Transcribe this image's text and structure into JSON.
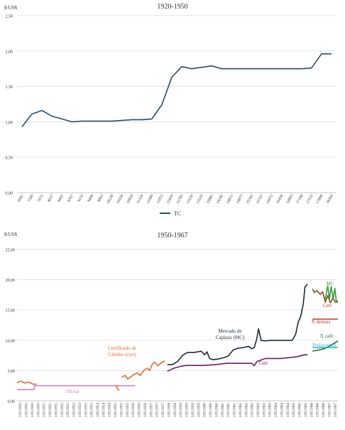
{
  "chart_data": [
    {
      "type": "line",
      "title": "1920-1950",
      "ylabel": "$/US$",
      "ylim": [
        0,
        2.5
      ],
      "ytick_labels": [
        "0,00",
        "0,50",
        "1,00",
        "1,50",
        "2,00",
        "2,50"
      ],
      "grid": true,
      "legend_position": "bottom",
      "x": [
        "6941",
        "7306",
        "7672",
        "8037",
        "8402",
        "8767",
        "9133",
        "9498",
        "9863",
        "10228",
        "10594",
        "10959",
        "11324",
        "11689",
        "12055",
        "12420",
        "12785",
        "13150",
        "13516",
        "13881",
        "14246",
        "14611",
        "14977",
        "15342",
        "15707",
        "16072",
        "16438",
        "16803",
        "17168",
        "17533",
        "17899",
        "18264"
      ],
      "series": [
        {
          "name": "TC",
          "color": "#2a4d6e",
          "points": [
            [
              6941,
              0.93
            ],
            [
              7306,
              1.11
            ],
            [
              7672,
              1.16
            ],
            [
              8037,
              1.08
            ],
            [
              8402,
              1.04
            ],
            [
              8767,
              1.0
            ],
            [
              9133,
              1.01
            ],
            [
              9498,
              1.01
            ],
            [
              9863,
              1.01
            ],
            [
              10228,
              1.01
            ],
            [
              10594,
              1.02
            ],
            [
              10959,
              1.03
            ],
            [
              11324,
              1.03
            ],
            [
              11689,
              1.04
            ],
            [
              12055,
              1.24
            ],
            [
              12420,
              1.63
            ],
            [
              12785,
              1.78
            ],
            [
              13150,
              1.75
            ],
            [
              13516,
              1.77
            ],
            [
              13881,
              1.79
            ],
            [
              14246,
              1.75
            ],
            [
              14611,
              1.75
            ],
            [
              14977,
              1.75
            ],
            [
              15342,
              1.75
            ],
            [
              15707,
              1.75
            ],
            [
              16072,
              1.75
            ],
            [
              16438,
              1.75
            ],
            [
              16803,
              1.75
            ],
            [
              17168,
              1.75
            ],
            [
              17533,
              1.76
            ],
            [
              17899,
              1.96
            ],
            [
              18264,
              1.96
            ]
          ]
        }
      ]
    },
    {
      "type": "line",
      "title": "1950-1967",
      "ylabel": "$/US$",
      "ylim": [
        0,
        25
      ],
      "ytick_labels": [
        "0,00",
        "5,00",
        "10,00",
        "15,00",
        "20,00",
        "25,00"
      ],
      "grid": true,
      "x_tick_labels": [
        "1/05/1950",
        "1/05/1950",
        "1/05/1950",
        "1/05/1950",
        "1/05/1951",
        "1/05/1951",
        "1/05/1951",
        "1/05/1952",
        "1/05/1952",
        "1/05/1952",
        "1/05/1953",
        "1/05/1953",
        "1/05/1953",
        "1/05/1954",
        "1/05/1954",
        "1/05/1954",
        "1/05/1955",
        "1/05/1955",
        "1/05/1955",
        "1/05/1956",
        "1/05/1956",
        "1/05/1956",
        "1/05/1957",
        "1/05/1957",
        "1/05/1957",
        "1/05/1958",
        "1/05/1958",
        "1/05/1958",
        "1/05/1959",
        "1/05/1959",
        "1/05/1959",
        "1/05/1960",
        "1/05/1960",
        "1/05/1960",
        "1/05/1961",
        "1/05/1961",
        "1/05/1961",
        "1/05/1962",
        "1/05/1962",
        "1/05/1962",
        "1/05/1963",
        "1/05/1963",
        "1/05/1963",
        "1/05/1964",
        "1/05/1964",
        "1/05/1964",
        "1/05/1965",
        "1/05/1965",
        "1/05/1965",
        "1/05/1966",
        "1/05/1966",
        "1/05/1966",
        "1/05/1967",
        "1/05/1967"
      ],
      "series": [
        {
          "name": "Oficial",
          "color": "#d27fd1",
          "points": [
            [
              1950.0,
              1.85
            ],
            [
              1951.0,
              1.85
            ],
            [
              1951.05,
              2.5
            ],
            [
              1957.0,
              2.5
            ]
          ]
        },
        {
          "name": "Certificado de Câmbio (cert)",
          "color": "#e2692b",
          "segments": [
            [
              [
                1950.0,
                3.0
              ],
              [
                1950.2,
                3.25
              ],
              [
                1950.45,
                2.95
              ],
              [
                1950.7,
                3.1
              ],
              [
                1950.95,
                2.75
              ],
              [
                1951.15,
                2.75
              ]
            ],
            [
              [
                1955.85,
                2.6
              ],
              [
                1955.95,
                2.0
              ],
              [
                1956.05,
                1.7
              ]
            ],
            [
              [
                1956.2,
                3.9
              ],
              [
                1956.4,
                4.2
              ],
              [
                1956.55,
                3.6
              ],
              [
                1956.75,
                4.0
              ],
              [
                1956.95,
                4.4
              ],
              [
                1957.1,
                4.6
              ],
              [
                1957.3,
                4.2
              ],
              [
                1957.5,
                5.0
              ],
              [
                1957.7,
                5.4
              ],
              [
                1957.85,
                5.0
              ],
              [
                1958.0,
                6.0
              ],
              [
                1958.15,
                6.4
              ],
              [
                1958.35,
                5.8
              ],
              [
                1958.55,
                6.3
              ],
              [
                1958.75,
                6.6
              ]
            ]
          ]
        },
        {
          "name": "Mercado de Capitais (MC)",
          "color": "#1a2a3d",
          "segments": [
            [
              [
                1958.9,
                6.0
              ],
              [
                1959.2,
                6.0
              ],
              [
                1959.5,
                6.5
              ],
              [
                1959.8,
                7.5
              ],
              [
                1960.1,
                8.0
              ],
              [
                1960.5,
                8.0
              ],
              [
                1960.9,
                8.2
              ],
              [
                1961.1,
                7.6
              ],
              [
                1961.25,
                8.1
              ],
              [
                1961.4,
                7.0
              ],
              [
                1961.6,
                6.8
              ],
              [
                1961.9,
                6.9
              ],
              [
                1962.2,
                7.1
              ],
              [
                1962.5,
                7.4
              ],
              [
                1962.8,
                8.4
              ],
              [
                1963.1,
                8.7
              ],
              [
                1963.4,
                8.8
              ],
              [
                1963.7,
                9.0
              ],
              [
                1963.9,
                8.6
              ],
              [
                1964.05,
                8.8
              ],
              [
                1964.2,
                10.3
              ],
              [
                1964.3,
                11.9
              ],
              [
                1964.45,
                10.0
              ],
              [
                1964.7,
                9.9
              ],
              [
                1965.0,
                10.0
              ],
              [
                1965.5,
                10.0
              ],
              [
                1966.0,
                10.0
              ],
              [
                1966.3,
                10.0
              ],
              [
                1966.5,
                11.0
              ],
              [
                1966.65,
                13.0
              ],
              [
                1966.8,
                14.0
              ],
              [
                1966.95,
                16.0
              ],
              [
                1967.05,
                18.8
              ],
              [
                1967.2,
                19.3
              ]
            ]
          ]
        },
        {
          "name": "Cert",
          "color": "#6b1e6a",
          "points": [
            [
              1958.9,
              4.9
            ],
            [
              1959.3,
              5.4
            ],
            [
              1959.7,
              5.7
            ],
            [
              1960.0,
              5.85
            ],
            [
              1961.0,
              5.85
            ],
            [
              1961.8,
              6.0
            ],
            [
              1962.4,
              6.2
            ],
            [
              1963.3,
              6.2
            ],
            [
              1963.9,
              6.2
            ],
            [
              1964.05,
              5.8
            ],
            [
              1964.2,
              6.5
            ],
            [
              1964.7,
              7.0
            ],
            [
              1965.6,
              7.0
            ],
            [
              1966.3,
              7.2
            ],
            [
              1966.6,
              7.3
            ],
            [
              1967.0,
              7.6
            ],
            [
              1967.2,
              7.6
            ]
          ]
        },
        {
          "name": "Cert",
          "color": "#8a4a1a",
          "points": [
            [
              1967.5,
              18.5
            ],
            [
              1967.6,
              17.9
            ],
            [
              1967.75,
              18.2
            ],
            [
              1967.95,
              17.6
            ],
            [
              1968.1,
              18.0
            ],
            [
              1968.25,
              16.3
            ],
            [
              1968.4,
              17.4
            ],
            [
              1968.55,
              16.2
            ],
            [
              1968.7,
              17.0
            ],
            [
              1968.85,
              16.3
            ],
            [
              1969.0,
              16.3
            ]
          ]
        },
        {
          "name": "MC",
          "color": "#3b9a3b",
          "points": [
            [
              1968.25,
              16.8
            ],
            [
              1968.4,
              19.0
            ],
            [
              1968.5,
              16.8
            ],
            [
              1968.6,
              18.9
            ],
            [
              1968.72,
              16.8
            ],
            [
              1968.82,
              18.6
            ],
            [
              1968.9,
              16.5
            ],
            [
              1969.0,
              16.5
            ]
          ]
        },
        {
          "name": "X demais",
          "color": "#c0392b",
          "points": [
            [
              1967.5,
              13.5
            ],
            [
              1969.0,
              13.5
            ]
          ]
        },
        {
          "name": "X café",
          "color": "#1f6b2a",
          "points": [
            [
              1967.5,
              8.2
            ],
            [
              1968.2,
              8.6
            ],
            [
              1968.6,
              9.2
            ],
            [
              1969.0,
              9.9
            ]
          ]
        },
        {
          "name": "Preferencial",
          "color": "#2eb0c8",
          "points": [
            [
              1967.5,
              8.8
            ],
            [
              1969.0,
              8.8
            ]
          ]
        }
      ],
      "annotations": [
        {
          "text": "Certificado de",
          "color": "#e2692b"
        },
        {
          "text": "Câmbio (cert)",
          "color": "#e2692b"
        },
        {
          "text": "Oficial",
          "color": "#d27fd1"
        },
        {
          "text": "Mercado de",
          "color": "#1a2a3d"
        },
        {
          "text": "Capitais (MC)",
          "color": "#1a2a3d"
        },
        {
          "text": "Cert",
          "color": "#6b1e6a"
        },
        {
          "text": "MC",
          "color": "#3b9a3b"
        },
        {
          "text": "Cert",
          "color": "#8a4a1a"
        },
        {
          "text": "X demais",
          "color": "#c0392b"
        },
        {
          "text": "X café",
          "color": "#1f6b2a"
        },
        {
          "text": "Preferencial",
          "color": "#2eb0c8"
        }
      ]
    }
  ]
}
